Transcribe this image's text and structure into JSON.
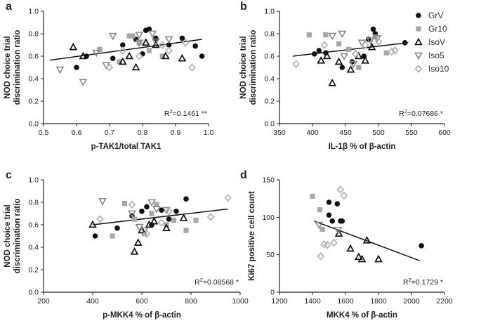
{
  "legend": {
    "colors": {
      "GrV": "#111111",
      "Gr10": "#a6a6a6",
      "IsoV": "#111111",
      "Iso5": "#8a8a8a",
      "Iso10": "#b0b0b0"
    },
    "items": [
      {
        "name": "GrV",
        "label": "GrV",
        "marker": "circle"
      },
      {
        "name": "Gr10",
        "label": "Gr10",
        "marker": "square"
      },
      {
        "name": "IsoV",
        "label": "IsoV",
        "marker": "triangle-up"
      },
      {
        "name": "Iso5",
        "label": "Iso5",
        "marker": "triangle-down"
      },
      {
        "name": "Iso10",
        "label": "Iso10",
        "marker": "diamond"
      }
    ]
  },
  "chart_data": [
    {
      "panel": "a",
      "type": "scatter",
      "xlabel": "p-TAK1/total TAK1",
      "ylabel": [
        "NOD choice trial",
        "discrimination ratio"
      ],
      "xlim": [
        0.5,
        1.0
      ],
      "ylim": [
        0.0,
        1.0
      ],
      "xticks": [
        "0.5",
        "0.6",
        "0.7",
        "0.8",
        "0.9",
        "1.0"
      ],
      "yticks": [
        "0.0",
        "0.2",
        "0.4",
        "0.6",
        "0.8",
        "1.0"
      ],
      "r2_base": "R",
      "r2_exp": "2",
      "r2_rest": "=0.1461 **",
      "fit": {
        "x": [
          0.52,
          0.98
        ],
        "y": [
          0.565,
          0.75
        ]
      },
      "series": [
        {
          "name": "GrV",
          "x": [
            0.6,
            0.63,
            0.71,
            0.74,
            0.78,
            0.81,
            0.82,
            0.84,
            0.88,
            0.92,
            0.96,
            0.98,
            0.8
          ],
          "y": [
            0.5,
            0.6,
            0.58,
            0.7,
            0.75,
            0.83,
            0.84,
            0.76,
            0.7,
            0.76,
            0.69,
            0.6,
            0.62
          ]
        },
        {
          "name": "Gr10",
          "x": [
            0.67,
            0.73,
            0.76,
            0.77,
            0.79,
            0.82,
            0.86
          ],
          "y": [
            0.66,
            0.55,
            0.78,
            0.78,
            0.72,
            0.65,
            0.6
          ]
        },
        {
          "name": "IsoV",
          "x": [
            0.59,
            0.62,
            0.74,
            0.76,
            0.78,
            0.81,
            0.84,
            0.87,
            0.92
          ],
          "y": [
            0.68,
            0.6,
            0.55,
            0.6,
            0.5,
            0.72,
            0.7,
            0.6,
            0.58
          ]
        },
        {
          "name": "Iso5",
          "x": [
            0.55,
            0.62,
            0.66,
            0.69,
            0.71,
            0.79,
            0.79,
            0.83,
            0.84,
            0.88
          ],
          "y": [
            0.48,
            0.37,
            0.63,
            0.52,
            0.78,
            0.79,
            0.72,
            0.8,
            0.73,
            0.75
          ]
        },
        {
          "name": "Iso10",
          "x": [
            0.7,
            0.74,
            0.79,
            0.86,
            0.88,
            0.93,
            0.95
          ],
          "y": [
            0.5,
            0.65,
            0.6,
            0.7,
            0.65,
            0.72,
            0.5
          ]
        }
      ]
    },
    {
      "panel": "b",
      "type": "scatter",
      "xlabel": "IL-1β % of β-actin",
      "ylabel": [
        "NOD choice trial",
        "discrimination ratio"
      ],
      "xlim": [
        350,
        600
      ],
      "ylim": [
        0.0,
        1.0
      ],
      "xticks": [
        "350",
        "400",
        "450",
        "500",
        "550",
        "600"
      ],
      "yticks": [
        "0.0",
        "0.2",
        "0.4",
        "0.6",
        "0.8",
        "1.0"
      ],
      "r2_base": "R",
      "r2_exp": "2",
      "r2_rest": "=0.07686 *",
      "fit": {
        "x": [
          370,
          545
        ],
        "y": [
          0.6,
          0.72
        ]
      },
      "series": [
        {
          "name": "GrV",
          "x": [
            403,
            420,
            445,
            460,
            478,
            485,
            492,
            495,
            540,
            410
          ],
          "y": [
            0.62,
            0.63,
            0.5,
            0.55,
            0.6,
            0.75,
            0.84,
            0.8,
            0.72,
            0.65
          ]
        },
        {
          "name": "Gr10",
          "x": [
            395,
            420,
            440,
            455,
            470,
            495,
            512
          ],
          "y": [
            0.79,
            0.79,
            0.71,
            0.66,
            0.5,
            0.77,
            0.63
          ]
        },
        {
          "name": "IsoV",
          "x": [
            413,
            422,
            430,
            440,
            458,
            470,
            480,
            490
          ],
          "y": [
            0.56,
            0.6,
            0.36,
            0.55,
            0.48,
            0.6,
            0.56,
            0.68
          ]
        },
        {
          "name": "Iso5",
          "x": [
            430,
            445,
            448,
            462,
            475,
            488,
            498
          ],
          "y": [
            0.78,
            0.8,
            0.6,
            0.53,
            0.72,
            0.74,
            0.76
          ]
        },
        {
          "name": "Iso10",
          "x": [
            375,
            418,
            465,
            480,
            500,
            520,
            525
          ],
          "y": [
            0.53,
            0.7,
            0.62,
            0.7,
            0.73,
            0.64,
            0.65
          ]
        }
      ]
    },
    {
      "panel": "c",
      "type": "scatter",
      "xlabel": "p-MKK4 % of β-actin",
      "ylabel": [
        "NOD choice trial",
        "discrimination ratio"
      ],
      "xlim": [
        200,
        1000
      ],
      "ylim": [
        0.0,
        1.0
      ],
      "xticks": [
        "200",
        "400",
        "600",
        "800",
        "1000"
      ],
      "yticks": [
        "0.0",
        "0.2",
        "0.4",
        "0.6",
        "0.8",
        "1.0"
      ],
      "r2_base": "R",
      "r2_exp": "2",
      "r2_rest": "=0.08568 *",
      "fit": {
        "x": [
          400,
          950
        ],
        "y": [
          0.6,
          0.74
        ]
      },
      "series": [
        {
          "name": "GrV",
          "x": [
            410,
            500,
            560,
            600,
            620,
            640,
            680,
            710,
            740,
            780
          ],
          "y": [
            0.5,
            0.57,
            0.68,
            0.72,
            0.76,
            0.6,
            0.73,
            0.65,
            0.72,
            0.83
          ]
        },
        {
          "name": "Gr10",
          "x": [
            480,
            530,
            570,
            610,
            640,
            660,
            700,
            730,
            780,
            820
          ],
          "y": [
            0.5,
            0.79,
            0.65,
            0.52,
            0.7,
            0.78,
            0.6,
            0.64,
            0.55,
            0.64
          ]
        },
        {
          "name": "IsoV",
          "x": [
            400,
            570,
            585,
            600,
            630,
            650,
            700,
            770
          ],
          "y": [
            0.6,
            0.36,
            0.44,
            0.55,
            0.6,
            0.63,
            0.57,
            0.66
          ]
        },
        {
          "name": "Iso5",
          "x": [
            440,
            560,
            590,
            610,
            640,
            660,
            700
          ],
          "y": [
            0.81,
            0.7,
            0.58,
            0.55,
            0.8,
            0.74,
            0.73
          ]
        },
        {
          "name": "Iso10",
          "x": [
            430,
            560,
            620,
            680,
            710,
            880,
            950
          ],
          "y": [
            0.65,
            0.78,
            0.52,
            0.62,
            0.72,
            0.67,
            0.84
          ]
        }
      ]
    },
    {
      "panel": "d",
      "type": "scatter",
      "xlabel": "MKK4 % of β-actin",
      "ylabel": [
        "Ki67 positive cell count"
      ],
      "xlim": [
        1200,
        2200
      ],
      "ylim": [
        0,
        150
      ],
      "xticks": [
        "1200",
        "1400",
        "1600",
        "1800",
        "2000",
        "2200"
      ],
      "yticks": [
        "0",
        "50",
        "100",
        "150"
      ],
      "r2_base": "R",
      "r2_exp": "2",
      "r2_rest": "=0.1729 *",
      "fit": {
        "x": [
          1410,
          2050
        ],
        "y": [
          95,
          42
        ]
      },
      "series": [
        {
          "name": "GrV",
          "x": [
            1500,
            1500,
            1520,
            1550,
            1570,
            1580,
            2060
          ],
          "y": [
            120,
            103,
            95,
            118,
            95,
            95,
            62
          ]
        },
        {
          "name": "Gr10",
          "x": [
            1400,
            1445,
            1460
          ],
          "y": [
            128,
            110,
            84
          ]
        },
        {
          "name": "IsoV",
          "x": [
            1560,
            1630,
            1680,
            1700,
            1730,
            1800
          ],
          "y": [
            78,
            58,
            47,
            44,
            69,
            44
          ]
        },
        {
          "name": "Iso5",
          "x": [
            1440,
            1555
          ],
          "y": [
            90,
            83
          ]
        },
        {
          "name": "Iso10",
          "x": [
            1450,
            1470,
            1490,
            1530,
            1570,
            1590
          ],
          "y": [
            48,
            64,
            63,
            66,
            137,
            129
          ]
        }
      ]
    }
  ]
}
